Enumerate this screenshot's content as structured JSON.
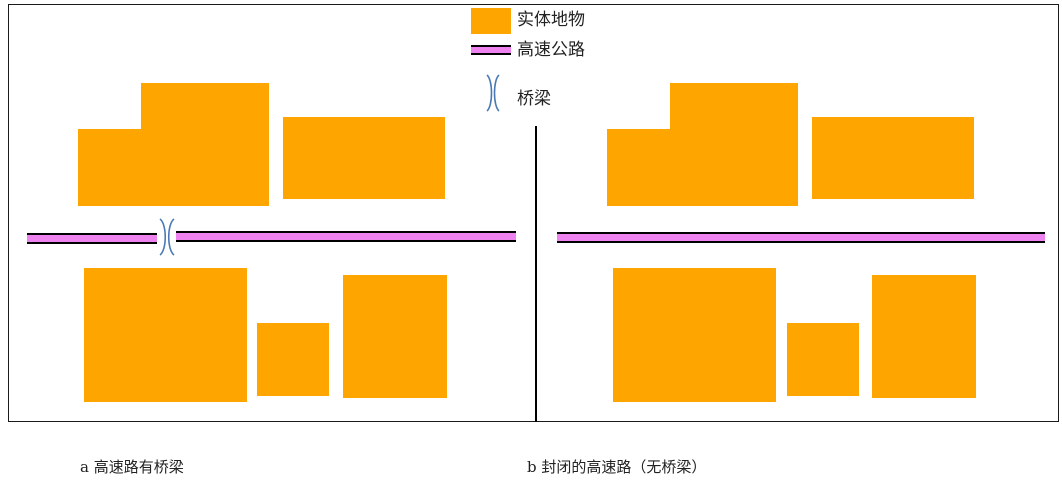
{
  "legend": {
    "features_label": "实体地物",
    "highway_label": "高速公路",
    "bridge_label": "桥梁"
  },
  "captions": {
    "left": "a 高速路有桥梁",
    "right": "b 封闭的高速路（无桥梁）"
  },
  "colors": {
    "feature": "#ffa500",
    "highway": "#ee82ee",
    "bridge": "#4a7ab5",
    "outline": "#000000"
  }
}
